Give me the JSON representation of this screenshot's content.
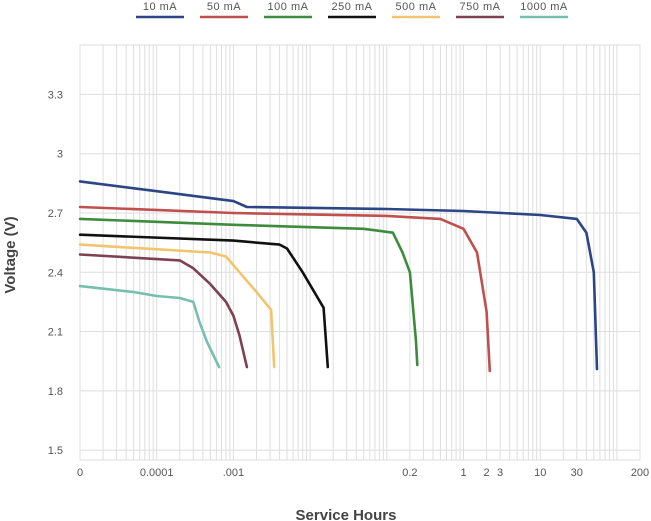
{
  "chart_data": {
    "type": "line",
    "title": "",
    "xlabel": "Service Hours",
    "ylabel": "Voltage (V)",
    "x_scale": "log",
    "xlim": [
      1e-05,
      200
    ],
    "ylim": [
      1.45,
      3.55
    ],
    "x_ticks": [
      {
        "value": 1e-05,
        "label": "0"
      },
      {
        "value": 0.0001,
        "label": "0.0001"
      },
      {
        "value": 0.001,
        "label": ".001"
      },
      {
        "value": 0.2,
        "label": "0.2"
      },
      {
        "value": 1,
        "label": "1"
      },
      {
        "value": 2,
        "label": "2"
      },
      {
        "value": 3,
        "label": "3"
      },
      {
        "value": 10,
        "label": "10"
      },
      {
        "value": 30,
        "label": "30"
      },
      {
        "value": 200,
        "label": "200"
      }
    ],
    "y_ticks": [
      {
        "value": 1.5,
        "label": "1.5"
      },
      {
        "value": 1.8,
        "label": "1.8"
      },
      {
        "value": 2.1,
        "label": "2.1"
      },
      {
        "value": 2.4,
        "label": "2.4"
      },
      {
        "value": 2.7,
        "label": "2.7"
      },
      {
        "value": 3.0,
        "label": "3"
      },
      {
        "value": 3.3,
        "label": "3.3"
      }
    ],
    "grid": true,
    "legend_position": "top",
    "series": [
      {
        "name": "10 mA",
        "color": "#2b4585",
        "points": [
          [
            1e-05,
            2.86
          ],
          [
            0.0001,
            2.81
          ],
          [
            0.001,
            2.76
          ],
          [
            0.0015,
            2.73
          ],
          [
            0.1,
            2.72
          ],
          [
            1,
            2.71
          ],
          [
            10,
            2.69
          ],
          [
            30,
            2.67
          ],
          [
            40,
            2.6
          ],
          [
            50,
            2.4
          ],
          [
            55,
            1.91
          ]
        ]
      },
      {
        "name": "50 mA",
        "color": "#c0504d",
        "points": [
          [
            1e-05,
            2.73
          ],
          [
            0.001,
            2.7
          ],
          [
            0.1,
            2.685
          ],
          [
            0.5,
            2.67
          ],
          [
            1,
            2.62
          ],
          [
            1.5,
            2.5
          ],
          [
            2,
            2.2
          ],
          [
            2.2,
            1.9
          ]
        ]
      },
      {
        "name": "100 mA",
        "color": "#3d8b3d",
        "points": [
          [
            1e-05,
            2.67
          ],
          [
            0.001,
            2.64
          ],
          [
            0.05,
            2.62
          ],
          [
            0.12,
            2.6
          ],
          [
            0.16,
            2.5
          ],
          [
            0.2,
            2.4
          ],
          [
            0.24,
            2.05
          ],
          [
            0.25,
            1.93
          ]
        ]
      },
      {
        "name": "250 mA",
        "color": "#111111",
        "points": [
          [
            1e-05,
            2.59
          ],
          [
            0.001,
            2.56
          ],
          [
            0.004,
            2.54
          ],
          [
            0.005,
            2.52
          ],
          [
            0.008,
            2.4
          ],
          [
            0.015,
            2.22
          ],
          [
            0.017,
            1.92
          ]
        ]
      },
      {
        "name": "500 mA",
        "color": "#f2c46d",
        "points": [
          [
            1e-05,
            2.54
          ],
          [
            0.0005,
            2.5
          ],
          [
            0.0008,
            2.48
          ],
          [
            0.0012,
            2.4
          ],
          [
            0.002,
            2.3
          ],
          [
            0.0031,
            2.21
          ],
          [
            0.0034,
            1.92
          ]
        ]
      },
      {
        "name": "750 mA",
        "color": "#7d4152",
        "points": [
          [
            1e-05,
            2.49
          ],
          [
            0.0002,
            2.46
          ],
          [
            0.0003,
            2.42
          ],
          [
            0.0005,
            2.34
          ],
          [
            0.0008,
            2.25
          ],
          [
            0.001,
            2.18
          ],
          [
            0.0012,
            2.08
          ],
          [
            0.0015,
            1.92
          ]
        ]
      },
      {
        "name": "1000 mA",
        "color": "#76bfae",
        "points": [
          [
            1e-05,
            2.33
          ],
          [
            5e-05,
            2.3
          ],
          [
            0.0001,
            2.28
          ],
          [
            0.0002,
            2.27
          ],
          [
            0.0003,
            2.25
          ],
          [
            0.00036,
            2.15
          ],
          [
            0.00045,
            2.05
          ],
          [
            0.00065,
            1.92
          ]
        ]
      }
    ]
  }
}
